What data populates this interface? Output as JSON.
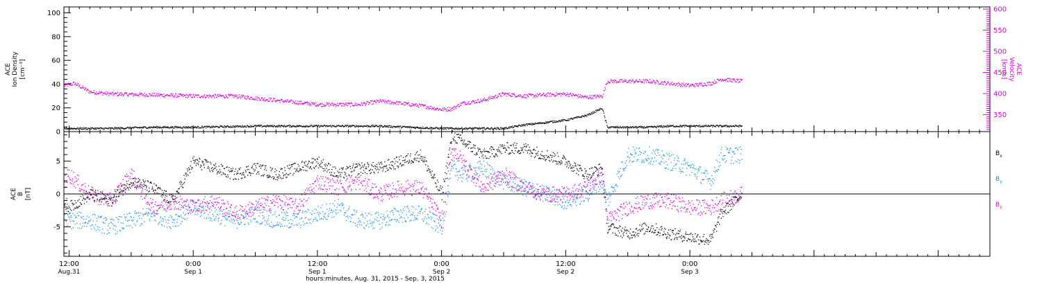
{
  "chart_data": {
    "type": "scatter",
    "title": "",
    "xlabel": "hours:minutes, Aug. 31, 2015 - Sep.  3, 2015",
    "x_range_hours": [
      -0.5,
      89
    ],
    "x_ticks": [
      {
        "t": 0,
        "time": "12:00",
        "date": "Aug.31"
      },
      {
        "t": 12,
        "time": "0:00",
        "date": "Sep 1"
      },
      {
        "t": 24,
        "time": "12:00",
        "date": "Sep 1"
      },
      {
        "t": 36,
        "time": "0:00",
        "date": "Sep 2"
      },
      {
        "t": 48,
        "time": "12:00",
        "date": "Sep 2"
      },
      {
        "t": 60,
        "time": "0:00",
        "date": "Sep 3"
      }
    ],
    "grid": false,
    "panels": [
      {
        "name": "plasma",
        "ylabel_left": [
          "ACE",
          "Ion Density",
          "[cm⁻³]"
        ],
        "ylabel_right": [
          "ACE",
          "Velocity",
          "[km/s]"
        ],
        "ylim_left": [
          0,
          105
        ],
        "ylim_right": [
          310,
          605
        ],
        "yticks_left": [
          0,
          20,
          40,
          60,
          80,
          100
        ],
        "yticks_right": [
          350,
          400,
          450,
          500,
          550,
          600
        ],
        "colors": {
          "density": "#000000",
          "velocity": "#d000d0"
        },
        "series": [
          {
            "name": "",
            "axis": "left",
            "color": "#000000",
            "t": [
              -0.5,
              4,
              8,
              12,
              18,
              24,
              30,
              36,
              40,
              42,
              44,
              46,
              48,
              50,
              51.5,
              52,
              54,
              56,
              58,
              60,
              62,
              65
            ],
            "value": [
              3,
              3,
              4,
              4,
              5,
              5,
              5,
              3,
              3,
              3,
              6,
              8,
              10,
              14,
              20,
              4,
              4,
              4,
              5,
              5,
              5,
              5
            ]
          },
          {
            "name": "",
            "axis": "right",
            "color": "#d000d0",
            "t": [
              -0.5,
              0.5,
              2,
              4,
              8,
              12,
              16,
              20,
              24,
              28,
              30,
              32,
              34,
              36,
              37,
              38,
              40,
              42,
              44,
              46,
              48,
              50,
              51.5,
              52,
              54,
              56,
              58,
              60,
              62,
              63,
              65
            ],
            "value": [
              420,
              425,
              405,
              400,
              398,
              395,
              395,
              385,
              375,
              375,
              383,
              378,
              372,
              363,
              365,
              378,
              385,
              400,
              395,
              398,
              400,
              392,
              395,
              430,
              430,
              430,
              425,
              420,
              425,
              435,
              430
            ]
          }
        ]
      },
      {
        "name": "magnetic-field",
        "ylabel_left": [
          "ACE",
          "B",
          "[nT]"
        ],
        "ylim": [
          -9.5,
          9.5
        ],
        "yticks": [
          -5,
          0,
          5
        ],
        "zero_line": true,
        "series": [
          {
            "name": "Bx",
            "label_base": "B",
            "label_sub": "x",
            "color": "#000000",
            "t": [
              -0.5,
              0,
              2,
              4,
              6,
              8,
              10,
              12,
              14,
              16,
              18,
              20,
              22,
              24,
              26,
              28,
              30,
              32,
              34,
              36,
              37,
              38,
              40,
              42,
              44,
              46,
              48,
              50,
              51.5,
              52,
              54,
              56,
              58,
              60,
              62,
              63,
              65
            ],
            "value": [
              -1,
              -2,
              0,
              -1,
              2,
              1,
              -1,
              5,
              4,
              3,
              4,
              3,
              4,
              5,
              3,
              4,
              4,
              5,
              6,
              0,
              9,
              8,
              6,
              7,
              7,
              6,
              5,
              3,
              4,
              -5,
              -6,
              -5,
              -6,
              -6.5,
              -7,
              -3,
              0
            ]
          },
          {
            "name": "By",
            "label_base": "B",
            "label_sub": "y",
            "color": "#1e8fe0",
            "t": [
              -0.5,
              0,
              2,
              4,
              6,
              8,
              10,
              12,
              14,
              16,
              18,
              20,
              22,
              24,
              26,
              28,
              30,
              32,
              34,
              36,
              37,
              38,
              40,
              42,
              44,
              46,
              48,
              50,
              51.5,
              52,
              54,
              56,
              58,
              60,
              62,
              63,
              65
            ],
            "value": [
              -3,
              -4,
              -4,
              -5,
              -4,
              -3,
              -4,
              -2,
              -3,
              -4,
              -3,
              -4,
              -4,
              -3,
              -2,
              -4,
              -4,
              -3,
              -3,
              -5,
              4,
              3,
              4,
              2,
              1,
              0,
              -1,
              0,
              2,
              -1,
              6,
              6,
              5,
              4,
              2,
              6,
              6
            ]
          },
          {
            "name": "Bz",
            "label_base": "B",
            "label_sub": "z",
            "color": "#d000d0",
            "t": [
              -0.5,
              0,
              2,
              4,
              6,
              8,
              10,
              12,
              14,
              16,
              18,
              20,
              22,
              24,
              26,
              28,
              30,
              32,
              34,
              36,
              37,
              38,
              40,
              42,
              44,
              46,
              48,
              50,
              51.5,
              52,
              54,
              56,
              58,
              60,
              62,
              63,
              65
            ],
            "value": [
              2,
              3,
              0,
              -1,
              3,
              -2,
              -1,
              -2,
              -1,
              -3,
              -2,
              -1,
              -2,
              2,
              1,
              2,
              0,
              1,
              1,
              -4,
              7,
              5,
              1,
              3,
              1,
              0,
              0,
              1,
              3,
              -4,
              -2,
              -1,
              -1,
              -2,
              -2,
              -1,
              0
            ]
          }
        ]
      }
    ]
  }
}
